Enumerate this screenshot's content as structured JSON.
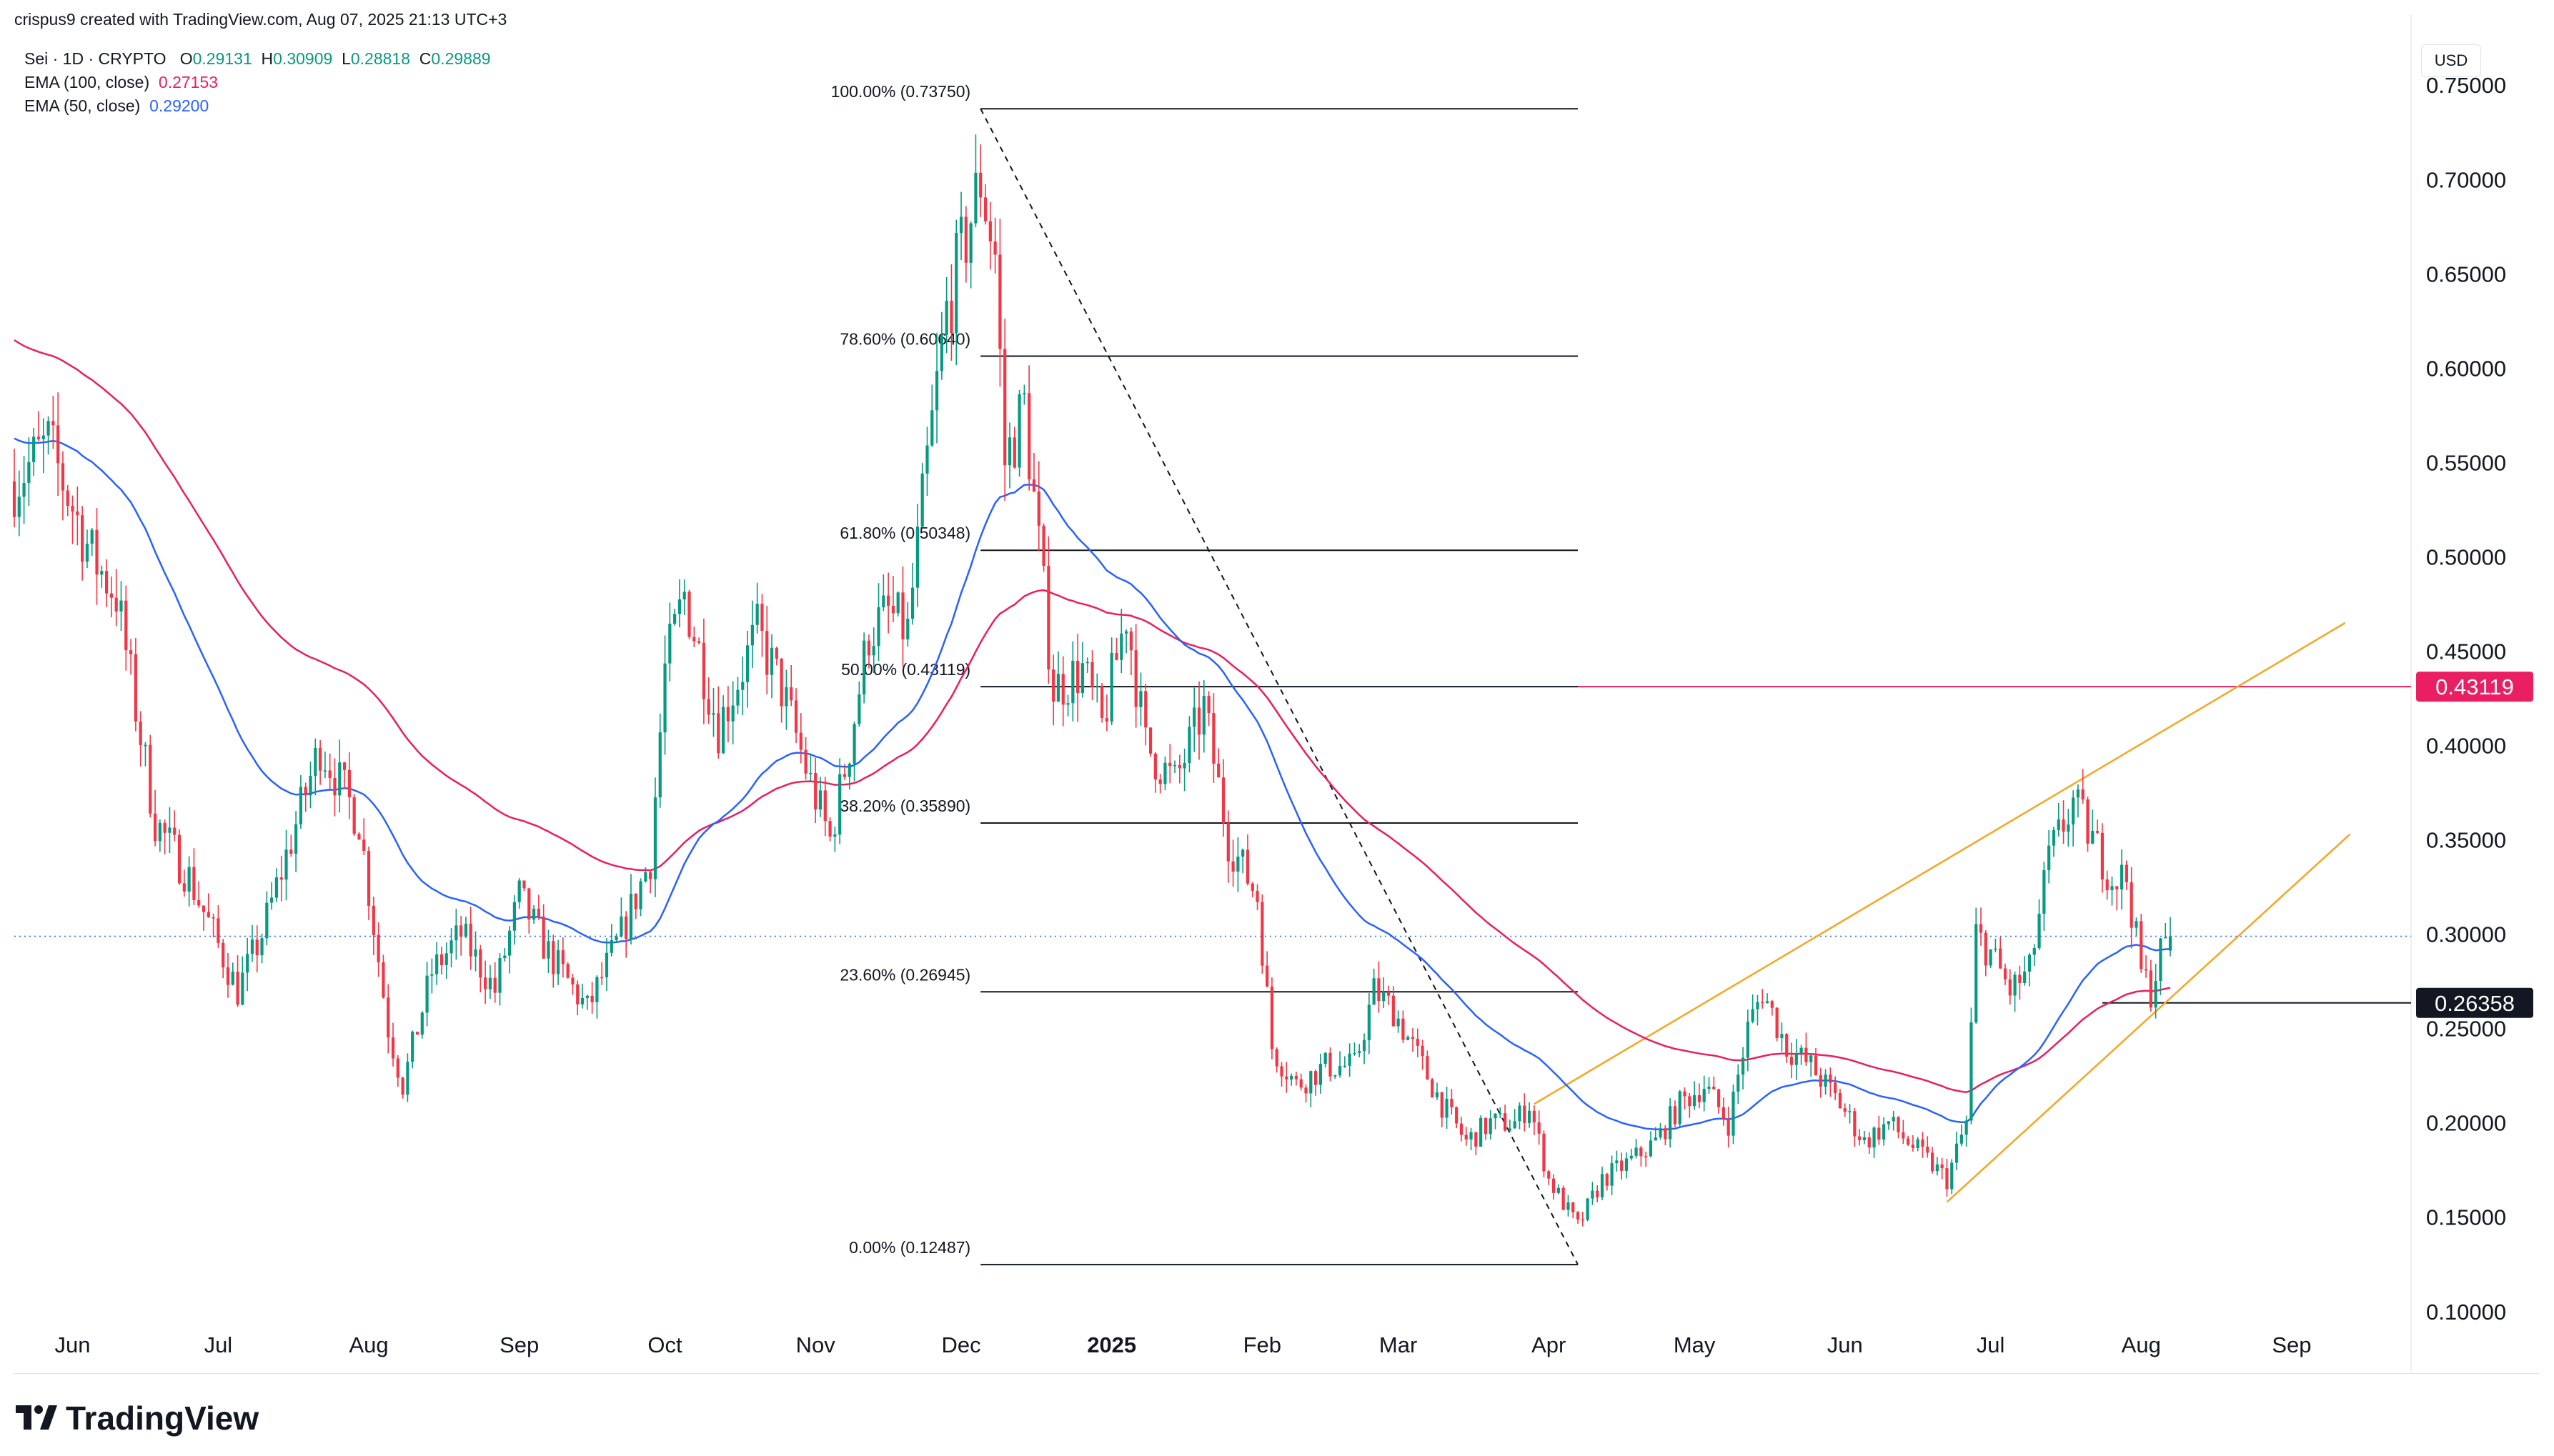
{
  "header": {
    "credit": "crispus9 created with TradingView.com, Aug 07, 2025 21:13 UTC+3",
    "symbol": "Sei · 1D · CRYPTO",
    "ohlc": {
      "o_label": "O",
      "o": "0.29131",
      "h_label": "H",
      "h": "0.30909",
      "l_label": "L",
      "l": "0.28818",
      "c_label": "C",
      "c": "0.29889"
    },
    "ema100_label": "EMA (100, close)",
    "ema100_value": "0.27153",
    "ema50_label": "EMA (50, close)",
    "ema50_value": "0.29200",
    "currency": "USD"
  },
  "branding": {
    "logo_text": "TradingView"
  },
  "colors": {
    "up": "#089981",
    "down": "#f23645",
    "ema100": "#e91e63",
    "ema50": "#2962ff",
    "trend": "#f5a623",
    "fib": "#131722",
    "resistance": "#e91e63",
    "accent_label": "#131722"
  },
  "chart_data": {
    "type": "candlestick",
    "ylim": [
      0.07,
      0.78
    ],
    "y_ticks": [
      "0.10000",
      "0.15000",
      "0.20000",
      "0.25000",
      "0.30000",
      "0.35000",
      "0.40000",
      "0.45000",
      "0.50000",
      "0.55000",
      "0.60000",
      "0.65000",
      "0.70000",
      "0.75000"
    ],
    "x_start": "2024-05-20",
    "x_end": "2025-09-25",
    "x_ticks": [
      {
        "date": "2024-06-01",
        "label": "Jun"
      },
      {
        "date": "2024-07-01",
        "label": "Jul"
      },
      {
        "date": "2024-08-01",
        "label": "Aug"
      },
      {
        "date": "2024-09-01",
        "label": "Sep"
      },
      {
        "date": "2024-10-01",
        "label": "Oct"
      },
      {
        "date": "2024-11-01",
        "label": "Nov"
      },
      {
        "date": "2024-12-01",
        "label": "Dec"
      },
      {
        "date": "2025-01-01",
        "label": "2025",
        "bold": true
      },
      {
        "date": "2025-02-01",
        "label": "Feb"
      },
      {
        "date": "2025-03-01",
        "label": "Mar"
      },
      {
        "date": "2025-04-01",
        "label": "Apr"
      },
      {
        "date": "2025-05-01",
        "label": "May"
      },
      {
        "date": "2025-06-01",
        "label": "Jun"
      },
      {
        "date": "2025-07-01",
        "label": "Jul"
      },
      {
        "date": "2025-08-01",
        "label": "Aug"
      },
      {
        "date": "2025-09-01",
        "label": "Sep"
      }
    ],
    "price_anchors": [
      [
        "2024-05-20",
        0.54
      ],
      [
        "2024-05-27",
        0.56
      ],
      [
        "2024-06-05",
        0.5
      ],
      [
        "2024-06-10",
        0.48
      ],
      [
        "2024-06-18",
        0.36
      ],
      [
        "2024-06-25",
        0.33
      ],
      [
        "2024-07-05",
        0.27
      ],
      [
        "2024-07-10",
        0.3
      ],
      [
        "2024-07-16",
        0.35
      ],
      [
        "2024-07-22",
        0.4
      ],
      [
        "2024-07-30",
        0.36
      ],
      [
        "2024-08-05",
        0.25
      ],
      [
        "2024-08-08",
        0.22
      ],
      [
        "2024-08-14",
        0.28
      ],
      [
        "2024-08-20",
        0.3
      ],
      [
        "2024-08-27",
        0.27
      ],
      [
        "2024-09-01",
        0.32
      ],
      [
        "2024-09-07",
        0.29
      ],
      [
        "2024-09-15",
        0.26
      ],
      [
        "2024-09-22",
        0.3
      ],
      [
        "2024-09-28",
        0.34
      ],
      [
        "2024-10-01",
        0.44
      ],
      [
        "2024-10-05",
        0.48
      ],
      [
        "2024-10-12",
        0.41
      ],
      [
        "2024-10-20",
        0.46
      ],
      [
        "2024-10-25",
        0.43
      ],
      [
        "2024-10-31",
        0.38
      ],
      [
        "2024-11-04",
        0.35
      ],
      [
        "2024-11-08",
        0.4
      ],
      [
        "2024-11-12",
        0.46
      ],
      [
        "2024-11-16",
        0.47
      ],
      [
        "2024-11-20",
        0.46
      ],
      [
        "2024-11-24",
        0.55
      ],
      [
        "2024-11-28",
        0.63
      ],
      [
        "2024-12-02",
        0.67
      ],
      [
        "2024-12-05",
        0.7
      ],
      [
        "2024-12-08",
        0.66
      ],
      [
        "2024-12-10",
        0.55
      ],
      [
        "2024-12-14",
        0.58
      ],
      [
        "2024-12-18",
        0.48
      ],
      [
        "2024-12-20",
        0.43
      ],
      [
        "2024-12-26",
        0.44
      ],
      [
        "2024-12-30",
        0.41
      ],
      [
        "2025-01-04",
        0.47
      ],
      [
        "2025-01-08",
        0.4
      ],
      [
        "2025-01-14",
        0.38
      ],
      [
        "2025-01-20",
        0.42
      ],
      [
        "2025-01-25",
        0.35
      ],
      [
        "2025-01-31",
        0.32
      ],
      [
        "2025-02-03",
        0.24
      ],
      [
        "2025-02-08",
        0.22
      ],
      [
        "2025-02-14",
        0.23
      ],
      [
        "2025-02-20",
        0.23
      ],
      [
        "2025-02-24",
        0.27
      ],
      [
        "2025-02-28",
        0.26
      ],
      [
        "2025-03-04",
        0.24
      ],
      [
        "2025-03-10",
        0.21
      ],
      [
        "2025-03-15",
        0.19
      ],
      [
        "2025-03-20",
        0.2
      ],
      [
        "2025-03-25",
        0.2
      ],
      [
        "2025-03-28",
        0.21
      ],
      [
        "2025-04-01",
        0.17
      ],
      [
        "2025-04-07",
        0.145
      ],
      [
        "2025-04-12",
        0.17
      ],
      [
        "2025-04-18",
        0.18
      ],
      [
        "2025-04-23",
        0.19
      ],
      [
        "2025-04-28",
        0.21
      ],
      [
        "2025-05-03",
        0.22
      ],
      [
        "2025-05-08",
        0.2
      ],
      [
        "2025-05-12",
        0.25
      ],
      [
        "2025-05-15",
        0.27
      ],
      [
        "2025-05-20",
        0.24
      ],
      [
        "2025-05-25",
        0.23
      ],
      [
        "2025-05-31",
        0.21
      ],
      [
        "2025-06-05",
        0.19
      ],
      [
        "2025-06-10",
        0.2
      ],
      [
        "2025-06-14",
        0.19
      ],
      [
        "2025-06-18",
        0.18
      ],
      [
        "2025-06-22",
        0.17
      ],
      [
        "2025-06-26",
        0.2
      ],
      [
        "2025-06-28",
        0.3
      ],
      [
        "2025-07-01",
        0.29
      ],
      [
        "2025-07-05",
        0.27
      ],
      [
        "2025-07-09",
        0.28
      ],
      [
        "2025-07-13",
        0.34
      ],
      [
        "2025-07-18",
        0.37
      ],
      [
        "2025-07-22",
        0.35
      ],
      [
        "2025-07-26",
        0.33
      ],
      [
        "2025-07-29",
        0.33
      ],
      [
        "2025-08-01",
        0.28
      ],
      [
        "2025-08-03",
        0.27
      ],
      [
        "2025-08-05",
        0.29
      ],
      [
        "2025-08-07",
        0.3
      ]
    ],
    "last_ohlc": {
      "o": 0.29131,
      "h": 0.30909,
      "l": 0.28818,
      "c": 0.29889
    },
    "fib": {
      "start": "2024-12-05",
      "end": "2025-04-07",
      "levels": [
        {
          "label": "100.00% (0.73750)",
          "value": 0.7375
        },
        {
          "label": "78.60% (0.60640)",
          "value": 0.6064
        },
        {
          "label": "61.80% (0.50348)",
          "value": 0.50348
        },
        {
          "label": "50.00% (0.43119)",
          "value": 0.43119
        },
        {
          "label": "38.20% (0.35890)",
          "value": 0.3589
        },
        {
          "label": "23.60% (0.26945)",
          "value": 0.26945
        },
        {
          "label": "0.00% (0.12487)",
          "value": 0.12487
        }
      ],
      "diagonal": {
        "from": [
          "2024-12-05",
          0.7375
        ],
        "to": [
          "2025-04-07",
          0.12487
        ]
      }
    },
    "resistance": {
      "value": 0.43119,
      "label": "0.43119",
      "from": "2025-04-07"
    },
    "support": {
      "value": 0.26358,
      "label": "0.26358",
      "from": "2025-07-24"
    },
    "current_price": 0.29889,
    "channel": {
      "upper": {
        "from": [
          "2025-03-29",
          0.21
        ],
        "to": [
          "2025-09-12",
          0.465
        ]
      },
      "lower": {
        "from": [
          "2025-06-22",
          0.158
        ],
        "to": [
          "2025-09-13",
          0.353
        ]
      }
    },
    "ema_labels": [
      "EMA (100, close)",
      "EMA (50, close)"
    ]
  }
}
